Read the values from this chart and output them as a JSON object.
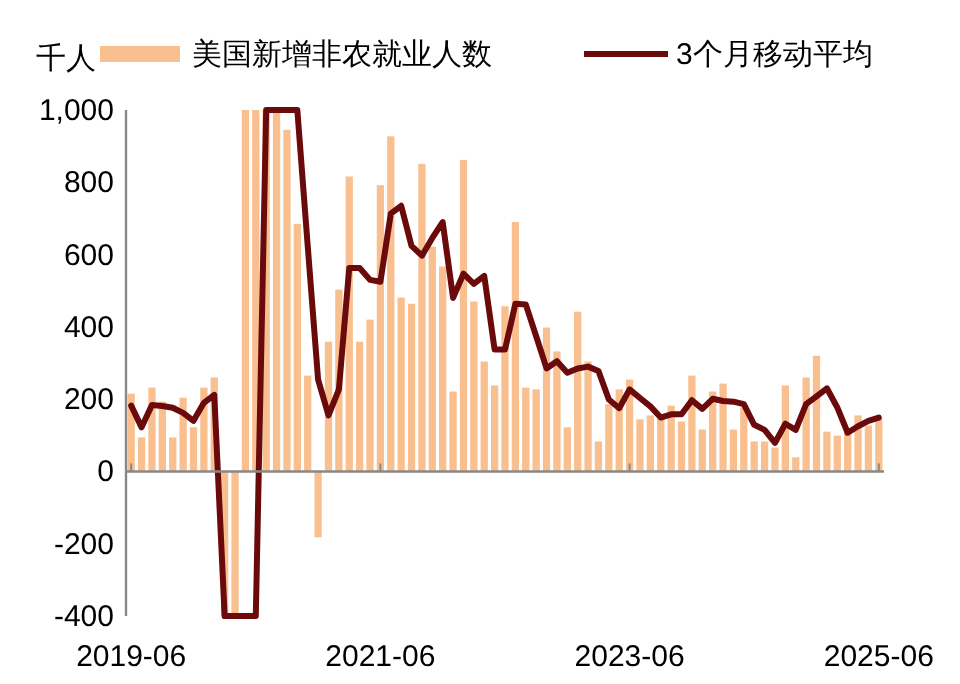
{
  "chart_data": {
    "type": "bar",
    "ylabel": "千人",
    "legend": "top",
    "categories": [
      "2019-06",
      null,
      null,
      null,
      null,
      null,
      null,
      null,
      null,
      null,
      null,
      null,
      null,
      null,
      null,
      null,
      null,
      null,
      null,
      null,
      null,
      null,
      null,
      null,
      "2021-06",
      null,
      null,
      null,
      null,
      null,
      null,
      null,
      null,
      null,
      null,
      null,
      null,
      null,
      null,
      null,
      null,
      null,
      null,
      null,
      null,
      null,
      null,
      null,
      "2023-06",
      null,
      null,
      null,
      null,
      null,
      null,
      null,
      null,
      null,
      null,
      null,
      null,
      null,
      null,
      null,
      null,
      null,
      null,
      null,
      null,
      null,
      null,
      null,
      "2025-06"
    ],
    "ylim": [
      -400,
      1000
    ],
    "yticks": [
      -400,
      -200,
      0,
      200,
      400,
      600,
      800,
      {
        "value": 1000,
        "label": "1,000"
      }
    ],
    "series": [
      {
        "name": "美国新增非农就业人数",
        "color": "#f9bf8e",
        "values": [
          215,
          94,
          232,
          193,
          94,
          204,
          122,
          232,
          260,
          -400,
          -400,
          1000,
          1000,
          1000,
          1000,
          945,
          685,
          265,
          -182,
          359,
          503,
          816,
          359,
          420,
          792,
          927,
          481,
          464,
          851,
          622,
          567,
          221,
          862,
          470,
          304,
          238,
          457,
          690,
          232,
          227,
          398,
          332,
          122,
          442,
          304,
          83,
          186,
          227,
          254,
          144,
          155,
          149,
          182,
          138,
          265,
          116,
          221,
          243,
          116,
          177,
          83,
          83,
          66,
          238,
          39,
          260,
          320,
          110,
          99,
          110,
          155,
          127,
          144
        ]
      },
      {
        "name": "3个月移动平均",
        "type": "line",
        "color": "#6b0a0a",
        "values": [
          182,
          122,
          184,
          181,
          176,
          162,
          140,
          190,
          212,
          -400,
          -400,
          -400,
          -400,
          1000,
          1000,
          1000,
          1000,
          624,
          254,
          155,
          226,
          563,
          563,
          530,
          525,
          713,
          735,
          624,
          597,
          646,
          690,
          480,
          547,
          519,
          541,
          337,
          337,
          464,
          462,
          374,
          285,
          305,
          273,
          285,
          290,
          278,
          199,
          175,
          227,
          203,
          180,
          149,
          158,
          158,
          197,
          173,
          201,
          195,
          193,
          186,
          129,
          115,
          79,
          132,
          115,
          186,
          208,
          230,
          177,
          107,
          125,
          140,
          149
        ]
      }
    ]
  }
}
